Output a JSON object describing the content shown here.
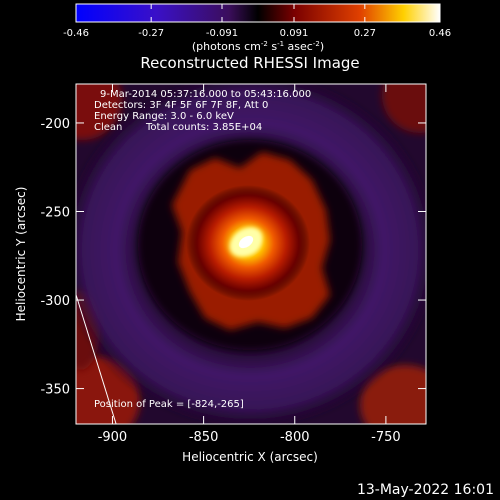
{
  "colorbar": {
    "ticks": [
      "-0.46",
      "-0.27",
      "-0.091",
      "0.091",
      "0.27",
      "0.46"
    ],
    "tick_values": [
      -0.46,
      -0.27,
      -0.091,
      0.091,
      0.27,
      0.46
    ],
    "range": [
      -0.46,
      0.46
    ],
    "units_prefix": "(photons cm",
    "units_exp1": "-2",
    "units_mid": " s",
    "units_exp2": "-1",
    "units_mid2": " asec",
    "units_exp3": "-2",
    "units_suffix": ")"
  },
  "annotations": {
    "time_range": "9-Mar-2014 05:37:16.000 to 05:43:16.000",
    "detectors": "Detectors: 3F 4F 5F 6F 7F 8F, Att 0",
    "energy": "Energy Range: 3.0 - 6.0 keV",
    "clean_label": "Clean",
    "total_counts": "Total counts: 3.85E+04",
    "peak": "Position of Peak = [-824,-265]"
  },
  "footer": {
    "timestamp": "13-May-2022 16:01"
  },
  "colors": {
    "background": "#000000",
    "text": "#ffffff"
  },
  "chart_data": {
    "type": "heatmap",
    "title": "Reconstructed RHESSI Image",
    "xlabel": "Heliocentric X (arcsec)",
    "ylabel": "Heliocentric Y (arcsec)",
    "xlim": [
      -920,
      -728
    ],
    "ylim": [
      -370,
      -178
    ],
    "x_ticks": [
      -900,
      -850,
      -800,
      -750
    ],
    "y_ticks": [
      -200,
      -250,
      -300,
      -350
    ],
    "x_tick_labels": [
      "-900",
      "-850",
      "-800",
      "-750"
    ],
    "y_tick_labels": [
      "-200",
      "-250",
      "-300",
      "-350"
    ],
    "colormap": "rhessi-blue-purple-red-yellow-white",
    "peak": {
      "x": -824,
      "y": -265,
      "value": 0.46
    },
    "limb_line": [
      {
        "x": -920,
        "y": -297
      },
      {
        "x": -898,
        "y": -370
      }
    ]
  }
}
